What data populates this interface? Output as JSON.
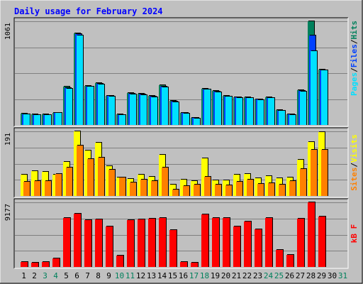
{
  "title": "Daily usage for February 2024",
  "colors": {
    "background": "#c0c0c0",
    "frame_light": "#ffffff",
    "frame_dark": "#000000",
    "title": "#0000ff",
    "hits": "#00805c",
    "files": "#0040ff",
    "pages": "#00e0ff",
    "visits": "#ffff00",
    "sites": "#ff8000",
    "kbytes": "#ff0000",
    "weekday": "#000000",
    "weekend": "#00805c",
    "gridline": "#808080"
  },
  "chart_data": [
    {
      "type": "bar",
      "panel": "hits-files-pages",
      "max_label": "1061",
      "ylim": [
        0,
        1061
      ],
      "grid": true,
      "legend_placement": "right-vertical",
      "legend": [
        {
          "key": "pages",
          "text": "Pages"
        },
        {
          "key": "sep1",
          "text": "/"
        },
        {
          "key": "files",
          "text": "Files"
        },
        {
          "key": "sep2",
          "text": "/"
        },
        {
          "key": "hits",
          "text": "Hits"
        }
      ],
      "categories": [
        "1",
        "2",
        "3",
        "4",
        "5",
        "6",
        "7",
        "8",
        "9",
        "10",
        "11",
        "12",
        "13",
        "14",
        "15",
        "16",
        "17",
        "18",
        "19",
        "20",
        "21",
        "22",
        "23",
        "24",
        "25",
        "26",
        "27",
        "28",
        "29",
        "30",
        "31"
      ],
      "series": [
        {
          "name": "Hits",
          "key": "hits",
          "values": [
            116,
            108,
            108,
            126,
            390,
            936,
            400,
            426,
            300,
            106,
            325,
            318,
            296,
            404,
            246,
            125,
            76,
            370,
            346,
            298,
            285,
            283,
            263,
            283,
            150,
            110,
            357,
            1061,
            570,
            0,
            0
          ]
        },
        {
          "name": "Files",
          "key": "files",
          "values": [
            112,
            104,
            102,
            124,
            380,
            930,
            396,
            418,
            296,
            102,
            318,
            312,
            290,
            396,
            240,
            120,
            72,
            364,
            340,
            294,
            280,
            278,
            258,
            278,
            146,
            106,
            350,
            918,
            560,
            0,
            0
          ]
        },
        {
          "name": "Pages",
          "key": "pages",
          "values": [
            108,
            100,
            100,
            120,
            368,
            918,
            392,
            414,
            294,
            100,
            312,
            308,
            285,
            385,
            235,
            116,
            68,
            360,
            337,
            290,
            276,
            275,
            253,
            275,
            144,
            100,
            344,
            755,
            556,
            0,
            0
          ]
        }
      ]
    },
    {
      "type": "bar",
      "panel": "visits-sites",
      "max_label": "191",
      "ylim": [
        0,
        191
      ],
      "grid": true,
      "legend_placement": "right-vertical",
      "legend": [
        {
          "key": "sites",
          "text": "Sites"
        },
        {
          "key": "sep1",
          "text": "/"
        },
        {
          "key": "visits",
          "text": "Visits"
        }
      ],
      "categories": [
        "1",
        "2",
        "3",
        "4",
        "5",
        "6",
        "7",
        "8",
        "9",
        "10",
        "11",
        "12",
        "13",
        "14",
        "15",
        "16",
        "17",
        "18",
        "19",
        "20",
        "21",
        "22",
        "23",
        "24",
        "25",
        "26",
        "27",
        "28",
        "29",
        "30",
        "31"
      ],
      "series": [
        {
          "name": "Visits",
          "key": "visits",
          "values": [
            62,
            74,
            72,
            64,
            100,
            191,
            135,
            158,
            88,
            55,
            50,
            62,
            57,
            121,
            34,
            48,
            45,
            111,
            46,
            46,
            62,
            65,
            52,
            59,
            52,
            55,
            107,
            160,
            189,
            0,
            0
          ]
        },
        {
          "name": "Sites",
          "key": "sites",
          "values": [
            42,
            45,
            45,
            66,
            85,
            148,
            110,
            113,
            77,
            54,
            40,
            48,
            45,
            83,
            18,
            30,
            33,
            57,
            34,
            31,
            43,
            48,
            36,
            37,
            34,
            44,
            79,
            137,
            136,
            0,
            0
          ]
        }
      ]
    },
    {
      "type": "bar",
      "panel": "kbytes",
      "max_label": "9177",
      "ylim": [
        0,
        9177
      ],
      "grid": true,
      "legend_placement": "right-vertical",
      "legend": [
        {
          "key": "kbytes",
          "text": "kB F"
        }
      ],
      "categories": [
        "1",
        "2",
        "3",
        "4",
        "5",
        "6",
        "7",
        "8",
        "9",
        "10",
        "11",
        "12",
        "13",
        "14",
        "15",
        "16",
        "17",
        "18",
        "19",
        "20",
        "21",
        "22",
        "23",
        "24",
        "25",
        "26",
        "27",
        "28",
        "29",
        "30",
        "31"
      ],
      "series": [
        {
          "name": "kB F",
          "key": "kbytes",
          "values": [
            700,
            630,
            680,
            1250,
            6960,
            7530,
            6690,
            6750,
            5750,
            1640,
            6690,
            6800,
            6850,
            6960,
            5290,
            700,
            560,
            7480,
            6960,
            6910,
            5720,
            6470,
            5340,
            6960,
            2410,
            1690,
            6900,
            9177,
            7140,
            0,
            0
          ]
        }
      ]
    }
  ],
  "days": [
    {
      "label": "1",
      "weekend": false
    },
    {
      "label": "2",
      "weekend": false
    },
    {
      "label": "3",
      "weekend": true
    },
    {
      "label": "4",
      "weekend": true
    },
    {
      "label": "5",
      "weekend": false
    },
    {
      "label": "6",
      "weekend": false
    },
    {
      "label": "7",
      "weekend": false
    },
    {
      "label": "8",
      "weekend": false
    },
    {
      "label": "9",
      "weekend": false
    },
    {
      "label": "10",
      "weekend": true
    },
    {
      "label": "11",
      "weekend": true
    },
    {
      "label": "12",
      "weekend": false
    },
    {
      "label": "13",
      "weekend": false
    },
    {
      "label": "14",
      "weekend": false
    },
    {
      "label": "15",
      "weekend": false
    },
    {
      "label": "16",
      "weekend": false
    },
    {
      "label": "17",
      "weekend": true
    },
    {
      "label": "18",
      "weekend": true
    },
    {
      "label": "19",
      "weekend": false
    },
    {
      "label": "20",
      "weekend": false
    },
    {
      "label": "21",
      "weekend": false
    },
    {
      "label": "22",
      "weekend": false
    },
    {
      "label": "23",
      "weekend": false
    },
    {
      "label": "24",
      "weekend": true
    },
    {
      "label": "25",
      "weekend": true
    },
    {
      "label": "26",
      "weekend": false
    },
    {
      "label": "27",
      "weekend": false
    },
    {
      "label": "28",
      "weekend": false
    },
    {
      "label": "29",
      "weekend": false
    },
    {
      "label": "30",
      "weekend": false
    },
    {
      "label": "31",
      "weekend": true
    }
  ]
}
